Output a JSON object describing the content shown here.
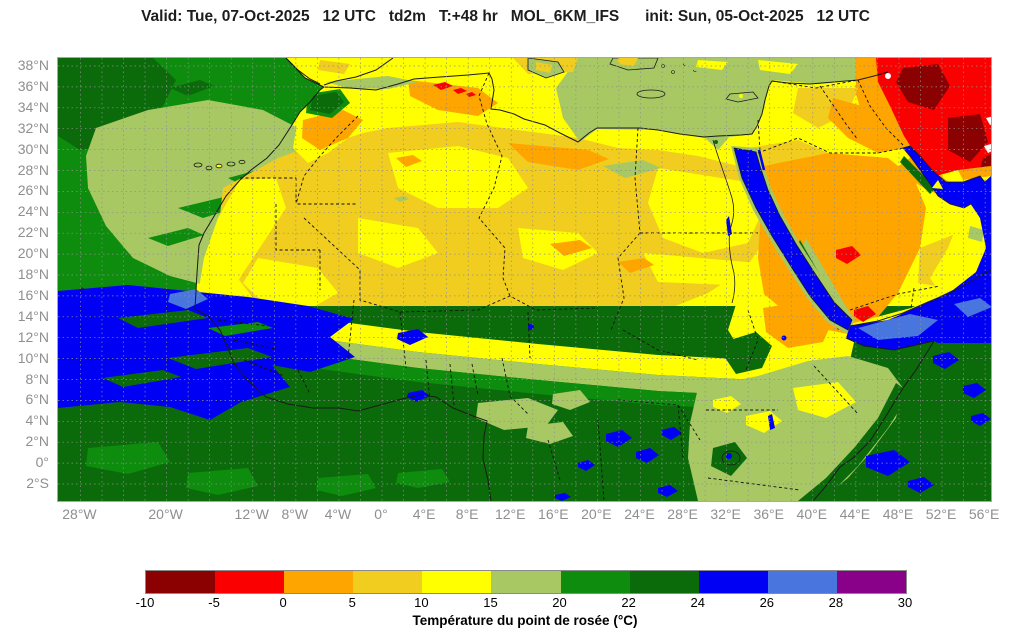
{
  "title": "Valid: Tue, 07-Oct-2025   12 UTC   td2m   T:+48 hr   MOL_6KM_IFS      init: Sun, 05-Oct-2025   12 UTC",
  "axes": {
    "lat_ticks": [
      {
        "label": "38°N",
        "value": 38
      },
      {
        "label": "36°N",
        "value": 36
      },
      {
        "label": "34°N",
        "value": 34
      },
      {
        "label": "32°N",
        "value": 32
      },
      {
        "label": "30°N",
        "value": 30
      },
      {
        "label": "28°N",
        "value": 28
      },
      {
        "label": "26°N",
        "value": 26
      },
      {
        "label": "24°N",
        "value": 24
      },
      {
        "label": "22°N",
        "value": 22
      },
      {
        "label": "20°N",
        "value": 20
      },
      {
        "label": "18°N",
        "value": 18
      },
      {
        "label": "16°N",
        "value": 16
      },
      {
        "label": "14°N",
        "value": 14
      },
      {
        "label": "12°N",
        "value": 12
      },
      {
        "label": "10°N",
        "value": 10
      },
      {
        "label": "8°N",
        "value": 8
      },
      {
        "label": "6°N",
        "value": 6
      },
      {
        "label": "4°N",
        "value": 4
      },
      {
        "label": "2°N",
        "value": 2
      },
      {
        "label": "0°",
        "value": 0
      },
      {
        "label": "2°S",
        "value": -2
      }
    ],
    "lon_ticks": [
      {
        "label": "28°W",
        "value": -28
      },
      {
        "label": "20°W",
        "value": -20
      },
      {
        "label": "12°W",
        "value": -12
      },
      {
        "label": "8°W",
        "value": -8
      },
      {
        "label": "4°W",
        "value": -4
      },
      {
        "label": "0°",
        "value": 0
      },
      {
        "label": "4°E",
        "value": 4
      },
      {
        "label": "8°E",
        "value": 8
      },
      {
        "label": "12°E",
        "value": 12
      },
      {
        "label": "16°E",
        "value": 16
      },
      {
        "label": "20°E",
        "value": 20
      },
      {
        "label": "24°E",
        "value": 24
      },
      {
        "label": "28°E",
        "value": 28
      },
      {
        "label": "32°E",
        "value": 32
      },
      {
        "label": "36°E",
        "value": 36
      },
      {
        "label": "40°E",
        "value": 40
      },
      {
        "label": "44°E",
        "value": 44
      },
      {
        "label": "48°E",
        "value": 48
      },
      {
        "label": "52°E",
        "value": 52
      },
      {
        "label": "56°E",
        "value": 56
      }
    ]
  },
  "colorbar": {
    "ticks": [
      "-10",
      "-5",
      "0",
      "5",
      "10",
      "15",
      "20",
      "22",
      "24",
      "26",
      "28",
      "30"
    ],
    "colors": [
      "#8b0000",
      "#fb0000",
      "#ffa500",
      "#f0cd1e",
      "#ffff00",
      "#a8c864",
      "#0d8c0d",
      "#0b6b0b",
      "#0000f5",
      "#4876de",
      "#8a0189"
    ],
    "caption": "Température du point de rosée (°C)"
  },
  "palette": {
    "white": "#ffffff",
    "darkred": "#8b0000",
    "red": "#fb0000",
    "orange": "#ffa500",
    "gold": "#f0cd1e",
    "yellow": "#ffff00",
    "sage": "#a8c864",
    "green": "#0d8c0d",
    "darkgreen": "#0b6b0b",
    "blue": "#0000f5",
    "cornflower": "#4876de",
    "purple": "#8a0189",
    "coast": "#1a1a1a",
    "border": "#111111",
    "grid": "#8f8f8f"
  },
  "chart_data": {
    "type": "heatmap",
    "title": "Valid: Tue, 07-Oct-2025 12 UTC  td2m  T:+48 hr  MOL_6KM_IFS  init: Sun, 05-Oct-2025 12 UTC",
    "variable": "td2m",
    "valid_time": "Tue, 07-Oct-2025 12 UTC",
    "forecast_step": "T:+48 hr",
    "model": "MOL_6KM_IFS",
    "init_time": "Sun, 05-Oct-2025 12 UTC",
    "colorbar_label": "Température du point de rosée (°C)",
    "colorbar_levels": [
      -10,
      -5,
      0,
      5,
      10,
      15,
      20,
      22,
      24,
      26,
      28,
      30
    ],
    "colorbar_colors": [
      "#8b0000",
      "#fb0000",
      "#ffa500",
      "#f0cd1e",
      "#ffff00",
      "#a8c864",
      "#0d8c0d",
      "#0b6b0b",
      "#0000f5",
      "#4876de",
      "#8a0189"
    ],
    "x_tick_labels": [
      "28°W",
      "20°W",
      "12°W",
      "8°W",
      "4°W",
      "0°",
      "4°E",
      "8°E",
      "12°E",
      "16°E",
      "20°E",
      "24°E",
      "28°E",
      "32°E",
      "36°E",
      "40°E",
      "44°E",
      "48°E",
      "52°E",
      "56°E"
    ],
    "y_tick_labels": [
      "38°N",
      "36°N",
      "34°N",
      "32°N",
      "30°N",
      "28°N",
      "26°N",
      "24°N",
      "22°N",
      "20°N",
      "18°N",
      "16°N",
      "14°N",
      "12°N",
      "10°N",
      "8°N",
      "6°N",
      "4°N",
      "2°N",
      "0°",
      "2°S"
    ],
    "lon_range_deg": [
      -30,
      56.5
    ],
    "lat_range_deg": [
      -3.6,
      38.8
    ],
    "grid": true,
    "legend_position": "bottom"
  }
}
